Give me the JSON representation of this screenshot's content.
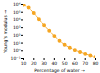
{
  "chart_data": {
    "type": "line",
    "x": [
      10,
      15,
      20,
      25,
      30,
      35,
      40,
      45,
      50,
      55,
      60,
      65,
      70,
      75,
      80
    ],
    "values": [
      1000000.0,
      400000.0,
      80000.0,
      12000.0,
      2000.0,
      400.0,
      80.0,
      20.0,
      6,
      2.5,
      1.2,
      0.7,
      0.4,
      0.25,
      0.15
    ],
    "color": "#F5A623",
    "marker": "o",
    "line_style": "dashed",
    "xlabel": "Percentage of water",
    "ylabel": "Young's modulus",
    "log": "y",
    "xlim": [
      10,
      80
    ],
    "xticks": [
      10,
      20,
      30,
      40,
      50,
      60,
      70,
      80
    ],
    "ylim": [
      0.1,
      1000000
    ],
    "yticks": [
      {
        "value": 0.1,
        "label": "10⁻¹"
      },
      {
        "value": 1,
        "label": "10⁰"
      },
      {
        "value": 10,
        "label": "10¹"
      },
      {
        "value": 100,
        "label": "10²"
      },
      {
        "value": 1000,
        "label": "10³"
      },
      {
        "value": 10000,
        "label": "10⁴"
      },
      {
        "value": 100000,
        "label": "10⁵"
      },
      {
        "value": 1000000,
        "label": "10⁶"
      }
    ]
  }
}
